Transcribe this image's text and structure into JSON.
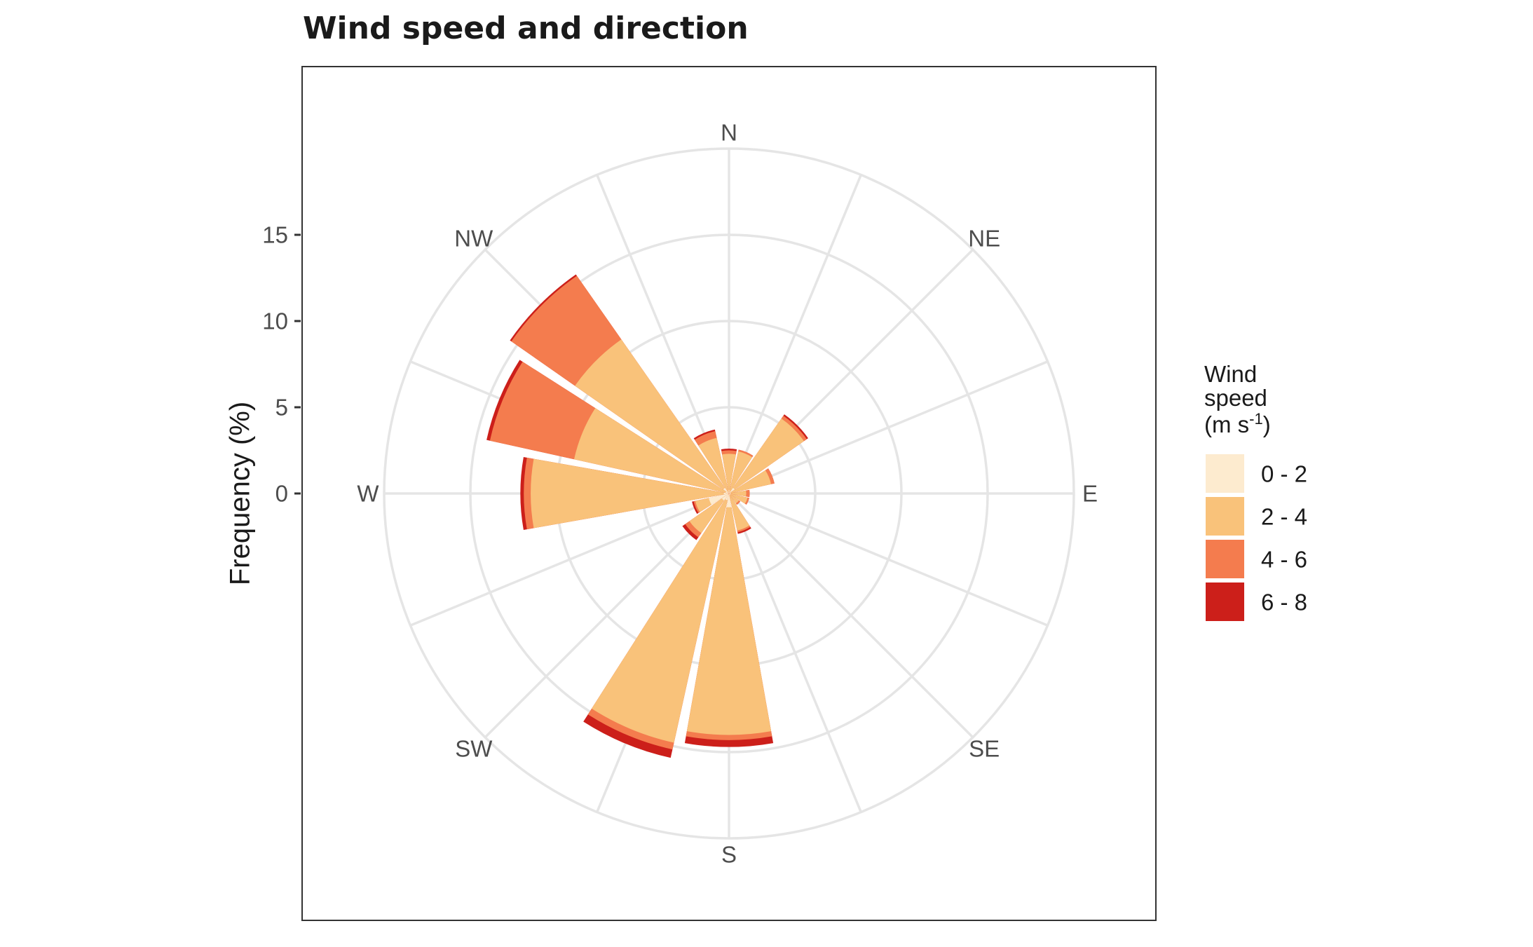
{
  "chart_data": {
    "type": "windrose",
    "title": "Wind speed and direction",
    "ylabel": "Frequency (%)",
    "y_ticks": [
      "0",
      "5",
      "10",
      "15"
    ],
    "radial_max": 20,
    "grid": true,
    "directions": [
      "N",
      "NNE",
      "NE",
      "ENE",
      "E",
      "ESE",
      "SE",
      "SSE",
      "S",
      "SSW",
      "SW",
      "WSW",
      "W",
      "WNW",
      "NW",
      "NNW"
    ],
    "direction_labels": [
      "N",
      "NE",
      "E",
      "SE",
      "S",
      "SW",
      "W",
      "NW"
    ],
    "legend": {
      "title_line1": "Wind",
      "title_line2": "speed",
      "title_unit_base": "(m s",
      "title_unit_sup": "-1",
      "title_unit_close": ")",
      "placement": "right"
    },
    "series": [
      {
        "name": "0 - 2",
        "color": "#FDEBCF",
        "values": [
          0.2,
          0.1,
          0.4,
          0.1,
          0.1,
          0.1,
          0.1,
          0.1,
          0.8,
          0.4,
          0.5,
          1.2,
          0.3,
          0.2,
          0.4,
          0.1
        ]
      },
      {
        "name": "2 - 4",
        "color": "#F9C27A",
        "values": [
          2.1,
          2.4,
          4.9,
          2.4,
          0.9,
          1.0,
          0.6,
          2.1,
          13.2,
          14.4,
          2.3,
          0.8,
          11.2,
          9.0,
          10.5,
          3.2
        ]
      },
      {
        "name": "4 - 6",
        "color": "#F47C4E",
        "values": [
          0.2,
          0.1,
          0.2,
          0.2,
          0.2,
          0.1,
          0.1,
          0.1,
          0.3,
          0.4,
          0.3,
          0.1,
          0.4,
          5.0,
          4.5,
          0.4
        ]
      },
      {
        "name": "6 - 8",
        "color": "#CC1F1A",
        "values": [
          0.1,
          0.0,
          0.1,
          0.0,
          0.0,
          0.0,
          0.0,
          0.1,
          0.4,
          0.5,
          0.2,
          0.1,
          0.2,
          0.2,
          0.1,
          0.1
        ]
      }
    ]
  }
}
